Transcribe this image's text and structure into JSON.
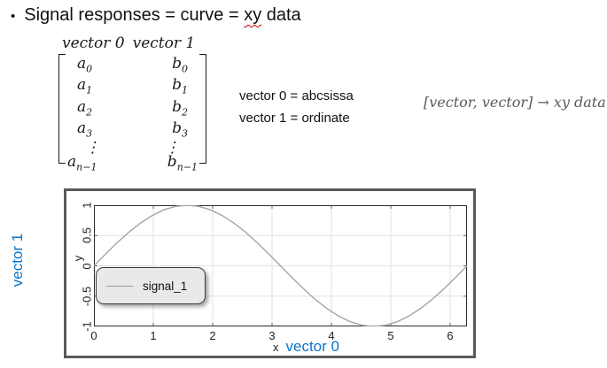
{
  "slide": {
    "bullet": "•",
    "title": {
      "prefix": "Signal responses = curve = ",
      "misspelled": "xy",
      "suffix": " data"
    }
  },
  "matrix": {
    "header_left": "vector 0",
    "header_right": "vector 1",
    "rows": [
      {
        "a_base": "a",
        "a_sub": "0",
        "b_base": "b",
        "b_sub": "0"
      },
      {
        "a_base": "a",
        "a_sub": "1",
        "b_base": "b",
        "b_sub": "1"
      },
      {
        "a_base": "a",
        "a_sub": "2",
        "b_base": "b",
        "b_sub": "2"
      },
      {
        "a_base": "a",
        "a_sub": "3",
        "b_base": "b",
        "b_sub": "3"
      },
      {
        "a_base": "⋮",
        "a_sub": "",
        "b_base": "⋮",
        "b_sub": ""
      },
      {
        "a_base": "a",
        "a_sub": "n−1",
        "b_base": "b",
        "b_sub": "n−1"
      }
    ]
  },
  "definitions": {
    "line1": "vector 0 = abcsissa",
    "line2": "vector 1 = ordinate"
  },
  "mapping_note": "[vector, vector]  → xy data",
  "annotations": {
    "x_vector": "vector 0",
    "y_vector": "vector 1",
    "blue": "#0a74c8"
  },
  "chart_data": {
    "type": "line",
    "title": "",
    "xlabel": "x",
    "ylabel": "y",
    "xlim": [
      0,
      6.2832
    ],
    "ylim": [
      -1,
      1
    ],
    "xticks": [
      0,
      1,
      2,
      3,
      4,
      5,
      6
    ],
    "yticks": [
      -1,
      -0.5,
      0,
      0.5,
      1
    ],
    "grid": true,
    "frame_color": "#595959",
    "legend": {
      "position": "center-left",
      "entries": [
        "signal_1"
      ]
    },
    "series": [
      {
        "name": "signal_1",
        "color": "#a6a6a6",
        "x": [
          0,
          0.196,
          0.393,
          0.589,
          0.785,
          0.982,
          1.178,
          1.374,
          1.571,
          1.767,
          1.963,
          2.16,
          2.356,
          2.553,
          2.749,
          2.945,
          3.142,
          3.338,
          3.534,
          3.73,
          3.927,
          4.123,
          4.32,
          4.516,
          4.712,
          4.909,
          5.105,
          5.301,
          5.498,
          5.694,
          5.89,
          6.087,
          6.283
        ],
        "y": [
          0,
          0.195,
          0.383,
          0.556,
          0.707,
          0.831,
          0.924,
          0.981,
          1,
          0.981,
          0.924,
          0.831,
          0.707,
          0.556,
          0.383,
          0.195,
          0,
          -0.195,
          -0.383,
          -0.556,
          -0.707,
          -0.831,
          -0.924,
          -0.981,
          -1,
          -0.981,
          -0.924,
          -0.831,
          -0.707,
          -0.556,
          -0.383,
          -0.195,
          0
        ]
      }
    ]
  }
}
